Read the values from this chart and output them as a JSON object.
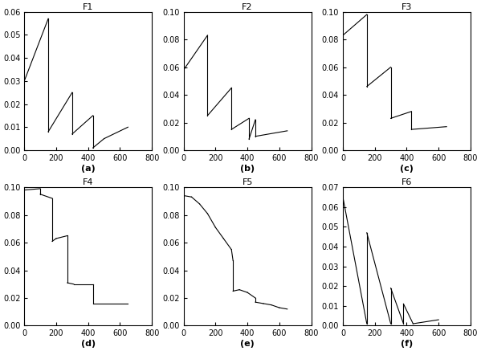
{
  "subplots": [
    {
      "title": "F1",
      "label": "(a)",
      "ylim": [
        0,
        0.06
      ],
      "yticks": [
        0,
        0.01,
        0.02,
        0.03,
        0.04,
        0.05,
        0.06
      ],
      "segments": [
        [
          [
            0,
            0.03
          ],
          [
            150,
            0.057
          ]
        ],
        [
          [
            150,
            0.057
          ],
          [
            150,
            0.008
          ]
        ],
        [
          [
            150,
            0.008
          ],
          [
            300,
            0.025
          ]
        ],
        [
          [
            300,
            0.025
          ],
          [
            300,
            0.007
          ]
        ],
        [
          [
            300,
            0.007
          ],
          [
            430,
            0.015
          ]
        ],
        [
          [
            430,
            0.015
          ],
          [
            430,
            0.001
          ]
        ],
        [
          [
            430,
            0.001
          ],
          [
            500,
            0.005
          ]
        ],
        [
          [
            500,
            0.005
          ],
          [
            650,
            0.01
          ]
        ]
      ]
    },
    {
      "title": "F2",
      "label": "(b)",
      "ylim": [
        0,
        0.1
      ],
      "yticks": [
        0,
        0.02,
        0.04,
        0.06,
        0.08,
        0.1
      ],
      "segments": [
        [
          [
            0,
            0.058
          ],
          [
            150,
            0.083
          ]
        ],
        [
          [
            150,
            0.083
          ],
          [
            150,
            0.025
          ]
        ],
        [
          [
            150,
            0.025
          ],
          [
            300,
            0.045
          ]
        ],
        [
          [
            300,
            0.045
          ],
          [
            300,
            0.015
          ]
        ],
        [
          [
            300,
            0.015
          ],
          [
            410,
            0.023
          ]
        ],
        [
          [
            410,
            0.023
          ],
          [
            410,
            0.008
          ]
        ],
        [
          [
            410,
            0.008
          ],
          [
            450,
            0.022
          ]
        ],
        [
          [
            450,
            0.022
          ],
          [
            450,
            0.01
          ]
        ],
        [
          [
            450,
            0.01
          ],
          [
            650,
            0.014
          ]
        ]
      ]
    },
    {
      "title": "F3",
      "label": "(c)",
      "ylim": [
        0,
        0.1
      ],
      "yticks": [
        0,
        0.02,
        0.04,
        0.06,
        0.08,
        0.1
      ],
      "segments": [
        [
          [
            0,
            0.083
          ],
          [
            150,
            0.098
          ]
        ],
        [
          [
            150,
            0.098
          ],
          [
            150,
            0.046
          ]
        ],
        [
          [
            150,
            0.046
          ],
          [
            300,
            0.06
          ]
        ],
        [
          [
            300,
            0.06
          ],
          [
            300,
            0.023
          ]
        ],
        [
          [
            300,
            0.023
          ],
          [
            430,
            0.028
          ]
        ],
        [
          [
            430,
            0.028
          ],
          [
            430,
            0.015
          ]
        ],
        [
          [
            430,
            0.015
          ],
          [
            650,
            0.017
          ]
        ]
      ]
    },
    {
      "title": "F4",
      "label": "(d)",
      "ylim": [
        0,
        0.1
      ],
      "yticks": [
        0,
        0.02,
        0.04,
        0.06,
        0.08,
        0.1
      ],
      "segments": [
        [
          [
            0,
            0.098
          ],
          [
            100,
            0.099
          ]
        ],
        [
          [
            100,
            0.099
          ],
          [
            100,
            0.095
          ]
        ],
        [
          [
            100,
            0.095
          ],
          [
            175,
            0.092
          ]
        ],
        [
          [
            175,
            0.092
          ],
          [
            175,
            0.061
          ]
        ],
        [
          [
            175,
            0.061
          ],
          [
            200,
            0.063
          ]
        ],
        [
          [
            200,
            0.063
          ],
          [
            200,
            0.063
          ]
        ],
        [
          [
            200,
            0.063
          ],
          [
            270,
            0.065
          ]
        ],
        [
          [
            270,
            0.065
          ],
          [
            270,
            0.031
          ]
        ],
        [
          [
            270,
            0.031
          ],
          [
            310,
            0.03
          ]
        ],
        [
          [
            310,
            0.03
          ],
          [
            430,
            0.03
          ]
        ],
        [
          [
            430,
            0.03
          ],
          [
            430,
            0.016
          ]
        ],
        [
          [
            430,
            0.016
          ],
          [
            650,
            0.016
          ]
        ]
      ]
    },
    {
      "title": "F5",
      "label": "(e)",
      "ylim": [
        0,
        0.1
      ],
      "yticks": [
        0,
        0.02,
        0.04,
        0.06,
        0.08,
        0.1
      ],
      "segments": [
        [
          [
            0,
            0.094
          ],
          [
            50,
            0.093
          ]
        ],
        [
          [
            50,
            0.093
          ],
          [
            100,
            0.088
          ]
        ],
        [
          [
            100,
            0.088
          ],
          [
            150,
            0.081
          ]
        ],
        [
          [
            150,
            0.081
          ],
          [
            200,
            0.071
          ]
        ],
        [
          [
            200,
            0.071
          ],
          [
            250,
            0.063
          ]
        ],
        [
          [
            250,
            0.063
          ],
          [
            300,
            0.055
          ]
        ],
        [
          [
            300,
            0.055
          ],
          [
            310,
            0.047
          ]
        ],
        [
          [
            310,
            0.047
          ],
          [
            310,
            0.025
          ]
        ],
        [
          [
            310,
            0.025
          ],
          [
            350,
            0.026
          ]
        ],
        [
          [
            350,
            0.026
          ],
          [
            400,
            0.024
          ]
        ],
        [
          [
            400,
            0.024
          ],
          [
            450,
            0.02
          ]
        ],
        [
          [
            450,
            0.02
          ],
          [
            450,
            0.017
          ]
        ],
        [
          [
            450,
            0.017
          ],
          [
            500,
            0.016
          ]
        ],
        [
          [
            500,
            0.016
          ],
          [
            550,
            0.015
          ]
        ],
        [
          [
            550,
            0.015
          ],
          [
            600,
            0.013
          ]
        ],
        [
          [
            600,
            0.013
          ],
          [
            650,
            0.012
          ]
        ]
      ]
    },
    {
      "title": "F6",
      "label": "(f)",
      "ylim": [
        0,
        0.07
      ],
      "yticks": [
        0,
        0.01,
        0.02,
        0.03,
        0.04,
        0.05,
        0.06,
        0.07
      ],
      "segments": [
        [
          [
            0,
            0.065
          ],
          [
            150,
            0.001
          ]
        ],
        [
          [
            150,
            0.001
          ],
          [
            150,
            0.047
          ]
        ],
        [
          [
            150,
            0.047
          ],
          [
            300,
            0.001
          ]
        ],
        [
          [
            300,
            0.001
          ],
          [
            300,
            0.019
          ]
        ],
        [
          [
            300,
            0.019
          ],
          [
            380,
            0.001
          ]
        ],
        [
          [
            380,
            0.001
          ],
          [
            380,
            0.011
          ]
        ],
        [
          [
            380,
            0.011
          ],
          [
            440,
            0.001
          ]
        ],
        [
          [
            440,
            0.001
          ],
          [
            440,
            0.001
          ]
        ],
        [
          [
            440,
            0.001
          ],
          [
            600,
            0.003
          ]
        ]
      ]
    }
  ],
  "xlim": [
    0,
    800
  ],
  "xticks": [
    0,
    200,
    400,
    600,
    800
  ],
  "line_color": "black",
  "line_width": 0.8,
  "bg_color": "white"
}
